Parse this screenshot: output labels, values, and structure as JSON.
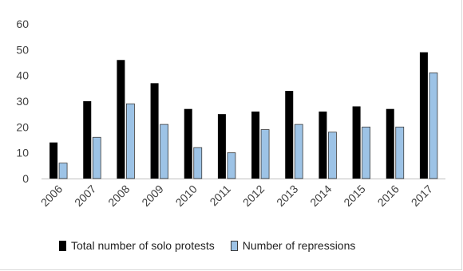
{
  "chart_data": {
    "type": "bar",
    "title": "",
    "xlabel": "",
    "ylabel": "",
    "categories": [
      "2006",
      "2007",
      "2008",
      "2009",
      "2010",
      "2011",
      "2012",
      "2013",
      "2014",
      "2015",
      "2016",
      "2017"
    ],
    "series": [
      {
        "name": "Total number of solo protests",
        "color": "#000000",
        "values": [
          14,
          30,
          46,
          37,
          27,
          25,
          26,
          34,
          26,
          28,
          27,
          49
        ]
      },
      {
        "name": "Number of repressions",
        "color": "#9dc3e6",
        "values": [
          6,
          16,
          29,
          21,
          12,
          10,
          19,
          21,
          18,
          20,
          20,
          41
        ]
      }
    ],
    "ylim": [
      0,
      60
    ],
    "yticks": [
      0,
      10,
      20,
      30,
      40,
      50,
      60
    ],
    "grid": false,
    "legend_position": "bottom"
  }
}
